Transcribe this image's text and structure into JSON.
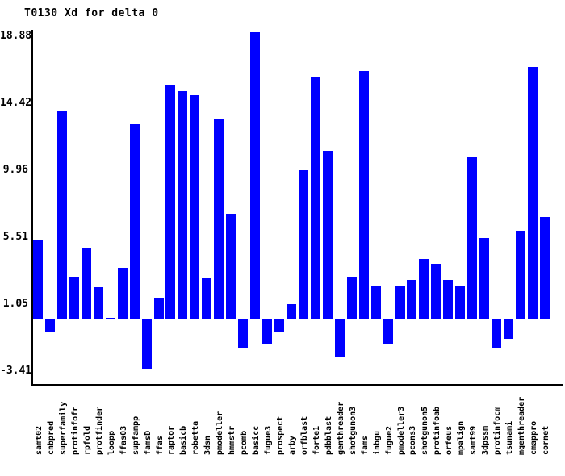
{
  "title": "T0130 Xd for delta 0",
  "chart_data": {
    "type": "bar",
    "title": "T0130 Xd for delta 0",
    "xlabel": "",
    "ylabel": "",
    "bar_color": "#0000FF",
    "axis_color": "#000000",
    "background_color": "#FFFFFF",
    "grid": false,
    "legend": null,
    "ylim": [
      -4.4,
      19.3
    ],
    "ytick_labels": [
      "18.88",
      "14.42",
      "9.96",
      "5.51",
      "1.05",
      "-3.41"
    ],
    "ytick_values": [
      18.88,
      14.42,
      9.96,
      5.51,
      1.05,
      -3.41
    ],
    "categories": [
      "samt02",
      "cnbpred",
      "superfamily",
      "protinfofr",
      "rpfold",
      "protfinder",
      "loopp",
      "ffas03",
      "supfampp",
      "famsD",
      "ffas",
      "raptor",
      "basicb",
      "robetta",
      "3dsn",
      "pmodeller",
      "hmmstr",
      "pcomb",
      "basicc",
      "fugue3",
      "prospect",
      "arby",
      "orfblast",
      "forte1",
      "pdbblast",
      "genthreader",
      "shotgunon3",
      "fams",
      "inbgu",
      "fugue2",
      "pmodeller3",
      "pcons3",
      "shotgunon5",
      "protinfoab",
      "orfeus",
      "mpalign",
      "samt99",
      "3dpssm",
      "protinfocm",
      "tsunami",
      "mgenthreader",
      "cmappro",
      "cornet"
    ],
    "values": [
      5.3,
      -0.8,
      13.9,
      2.8,
      4.7,
      2.1,
      0.1,
      3.4,
      13.0,
      -3.3,
      1.4,
      15.6,
      15.2,
      14.9,
      2.7,
      13.3,
      7.0,
      -1.9,
      19.1,
      -1.6,
      -0.8,
      1.0,
      9.9,
      16.1,
      11.2,
      -2.5,
      2.8,
      16.5,
      2.2,
      -1.6,
      2.2,
      2.6,
      4.0,
      3.7,
      2.6,
      2.2,
      10.8,
      5.4,
      -1.9,
      -1.3,
      5.9,
      16.8,
      6.8
    ]
  }
}
